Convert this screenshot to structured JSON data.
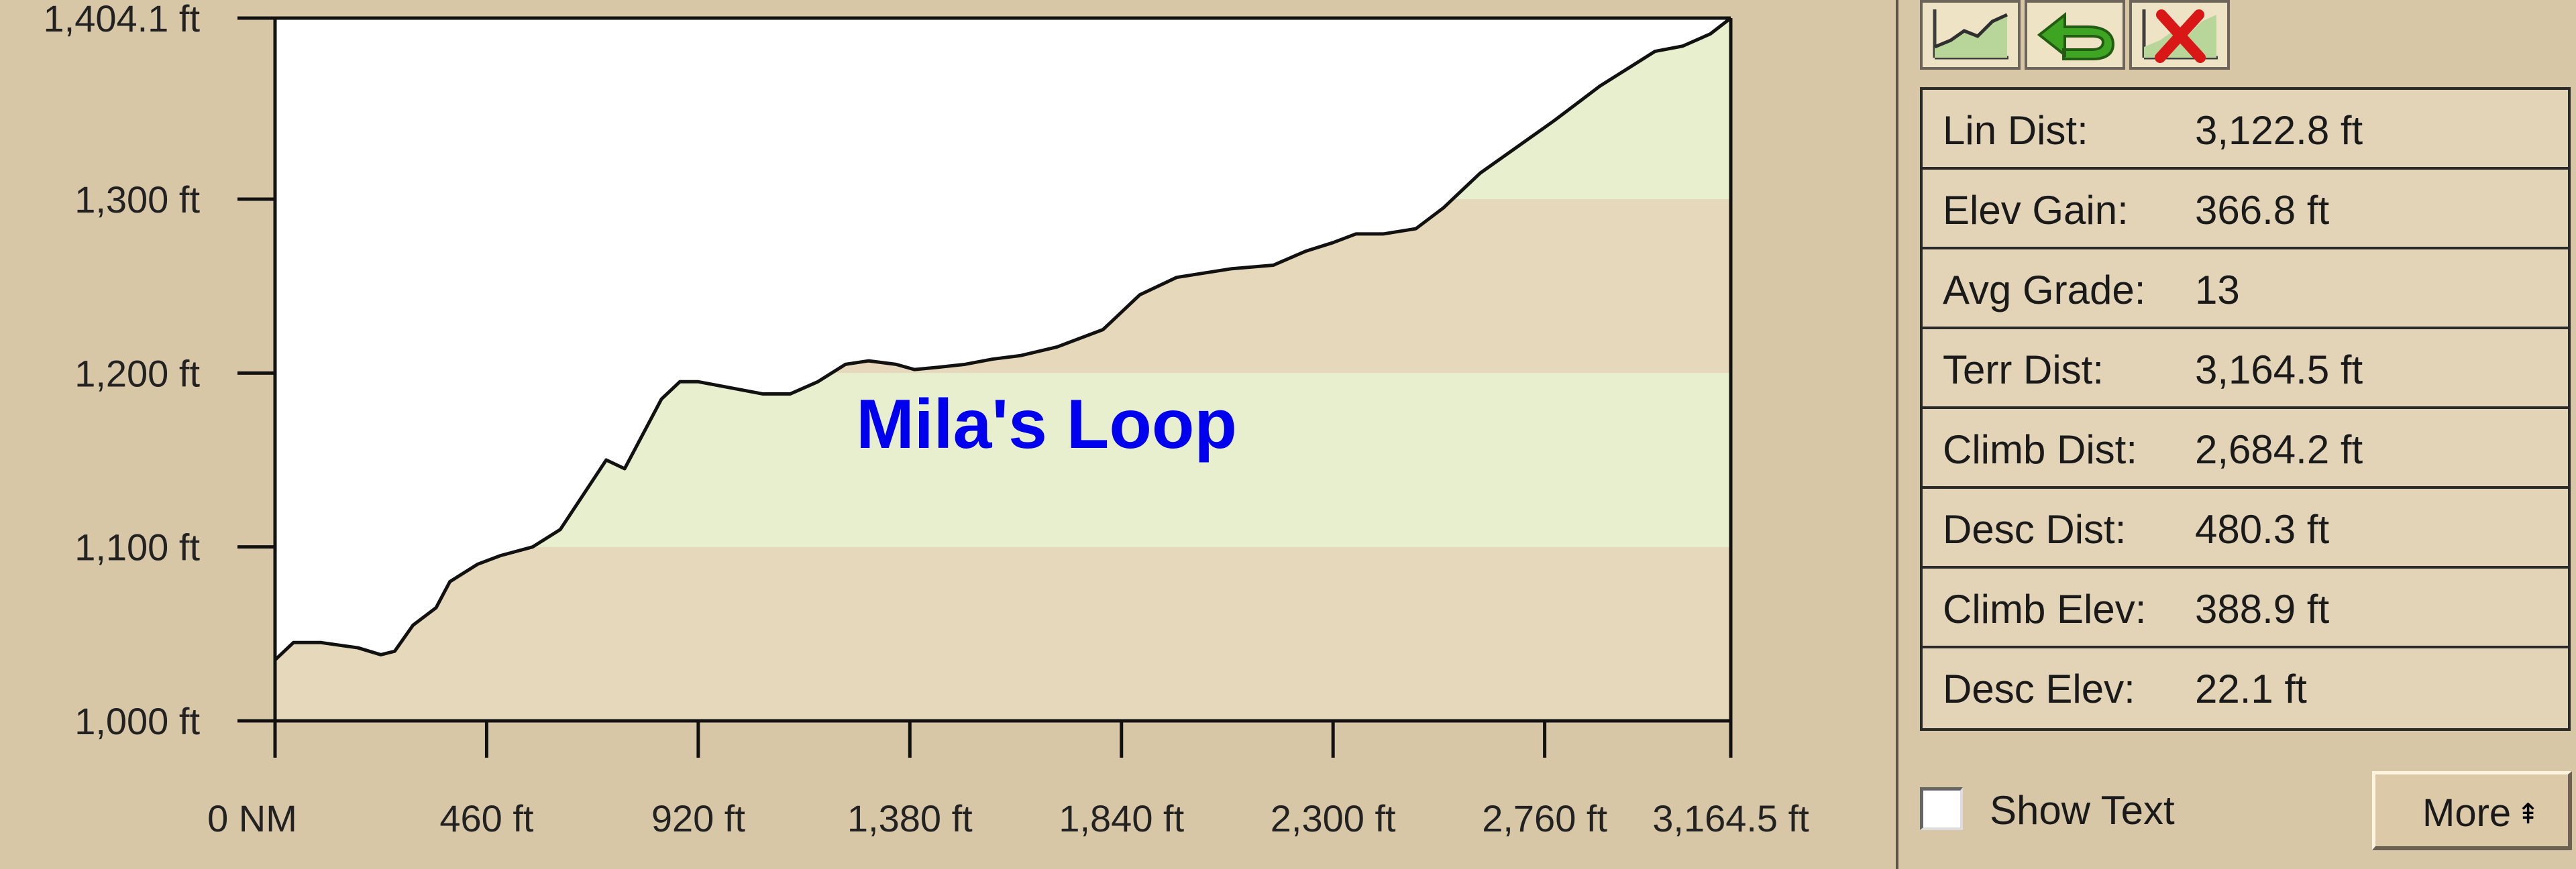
{
  "chart_data": {
    "type": "area",
    "title": "Mila's Loop",
    "x_unit": "ft",
    "y_unit": "ft",
    "xlim": [
      0,
      3164.5
    ],
    "ylim": [
      1000,
      1404.1
    ],
    "x_ticks": [
      0,
      460,
      920,
      1380,
      1840,
      2300,
      2760,
      3164.5
    ],
    "x_tick_labels": [
      "0 NM",
      "460 ft",
      "920 ft",
      "1,380 ft",
      "1,840 ft",
      "2,300 ft",
      "2,760 ft",
      "3,164.5 ft"
    ],
    "y_ticks": [
      1000,
      1100,
      1200,
      1300,
      1404.1
    ],
    "y_tick_labels": [
      "1,000 ft",
      "1,100 ft",
      "1,200 ft",
      "1,300 ft",
      "1,404.1 ft"
    ],
    "x": [
      0,
      40,
      100,
      180,
      230,
      260,
      300,
      350,
      380,
      440,
      490,
      560,
      620,
      670,
      720,
      760,
      800,
      840,
      880,
      920,
      980,
      1060,
      1120,
      1180,
      1240,
      1290,
      1350,
      1390,
      1430,
      1500,
      1560,
      1620,
      1700,
      1800,
      1880,
      1960,
      2080,
      2170,
      2240,
      2300,
      2350,
      2410,
      2480,
      2540,
      2620,
      2700,
      2780,
      2830,
      2880,
      2940,
      3000,
      3060,
      3120,
      3164.5
    ],
    "y": [
      1035,
      1045,
      1045,
      1042,
      1038,
      1040,
      1055,
      1065,
      1080,
      1090,
      1095,
      1100,
      1110,
      1130,
      1150,
      1145,
      1165,
      1185,
      1195,
      1195,
      1192,
      1188,
      1188,
      1195,
      1205,
      1207,
      1205,
      1202,
      1203,
      1205,
      1208,
      1210,
      1215,
      1225,
      1245,
      1255,
      1260,
      1262,
      1270,
      1275,
      1280,
      1280,
      1283,
      1295,
      1315,
      1330,
      1345,
      1355,
      1365,
      1375,
      1385,
      1388,
      1395,
      1404.1
    ],
    "bands": [
      {
        "from": 1000,
        "to": 1100,
        "color": "#e6d8bb"
      },
      {
        "from": 1100,
        "to": 1200,
        "color": "#e7efce"
      },
      {
        "from": 1200,
        "to": 1300,
        "color": "#e6d8bb"
      },
      {
        "from": 1300,
        "to": 1404.1,
        "color": "#e7efce"
      }
    ],
    "grid": false
  },
  "toolbar": {
    "buttons": [
      {
        "icon": "profile-chart-icon"
      },
      {
        "icon": "green-arrow-back-icon"
      },
      {
        "icon": "close-profile-icon"
      }
    ]
  },
  "stats": [
    {
      "label": "Lin Dist:",
      "value": "3,122.8 ft"
    },
    {
      "label": "Elev Gain:",
      "value": "366.8 ft"
    },
    {
      "label": "Avg Grade:",
      "value": "13"
    },
    {
      "label": "Terr Dist:",
      "value": "3,164.5 ft"
    },
    {
      "label": "Climb Dist:",
      "value": "2,684.2 ft"
    },
    {
      "label": "Desc Dist:",
      "value": "480.3 ft"
    },
    {
      "label": "Climb Elev:",
      "value": "388.9 ft"
    },
    {
      "label": "Desc Elev:",
      "value": "22.1 ft"
    }
  ],
  "show_text": {
    "label": "Show Text",
    "checked": false
  },
  "more_button": {
    "label": "More",
    "icon": "double-up-arrow-icon"
  },
  "colors": {
    "background": "#d8c7a6",
    "title": "#0000ee",
    "profile_line": "#111111",
    "plot_top": "#ffffff"
  }
}
